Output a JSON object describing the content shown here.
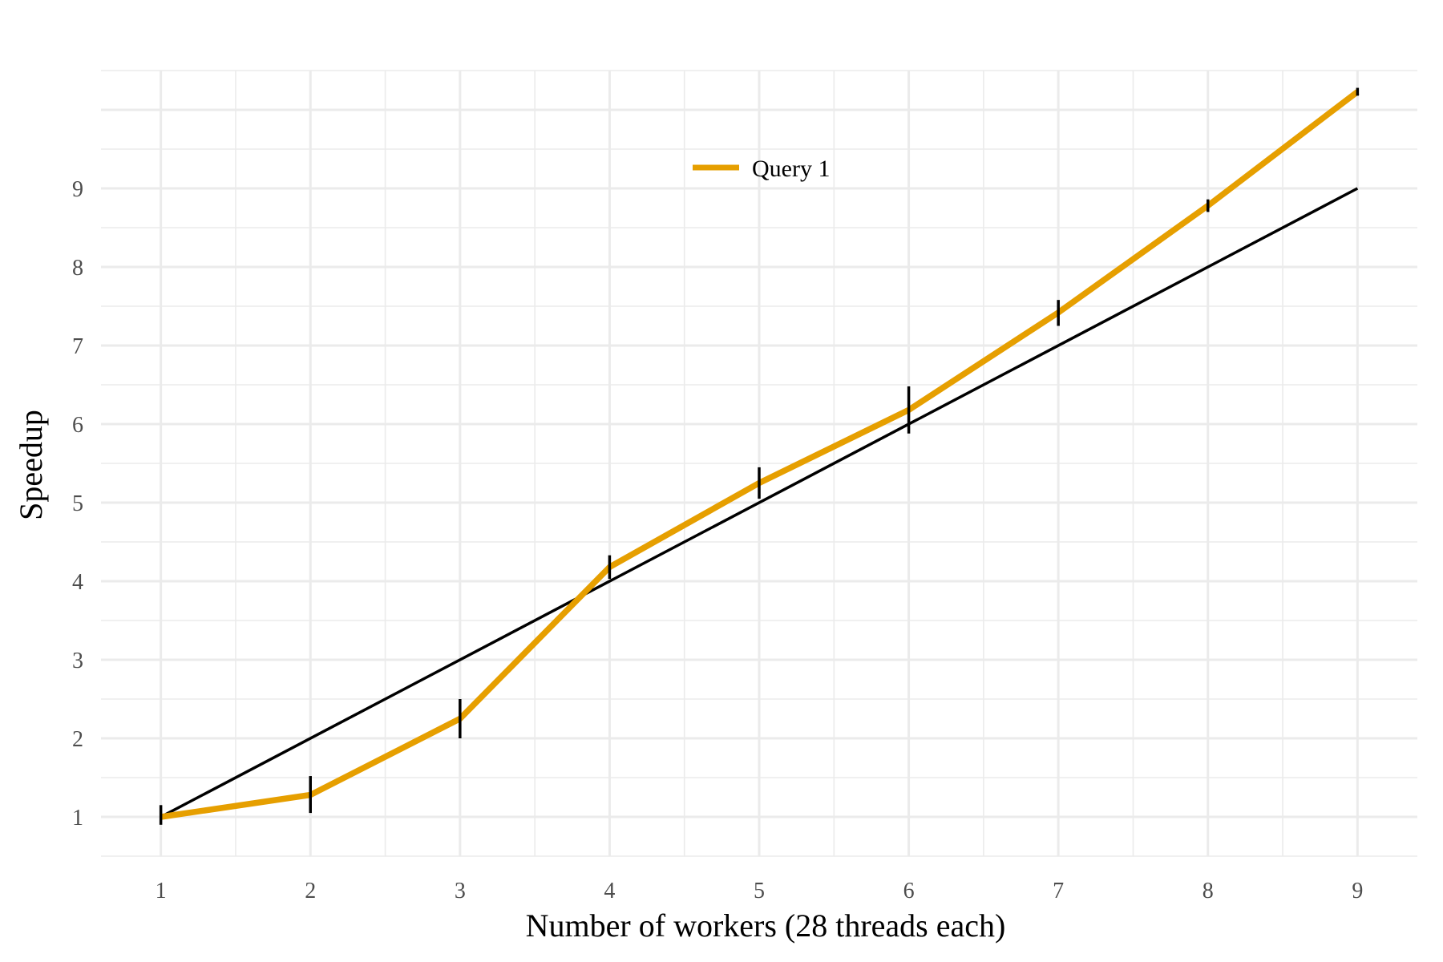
{
  "chart_data": {
    "type": "line",
    "xlabel": "Number of workers (28 threads each)",
    "ylabel": "Speedup",
    "x_ticks": [
      1,
      2,
      3,
      4,
      5,
      6,
      7,
      8,
      9
    ],
    "y_ticks": [
      1,
      2,
      3,
      4,
      5,
      6,
      7,
      8,
      9
    ],
    "xlim": [
      0.6,
      9.4
    ],
    "ylim": [
      0.5,
      10.5
    ],
    "grid": true,
    "legend_position": "top-center",
    "series": [
      {
        "name": "Query 1",
        "color": "#E69F00",
        "x": [
          1,
          2,
          3,
          4,
          5,
          6,
          7,
          8,
          9
        ],
        "y": [
          1.0,
          1.28,
          2.25,
          4.18,
          5.25,
          6.18,
          7.42,
          8.78,
          10.23
        ],
        "error_low": [
          0.9,
          1.05,
          2.0,
          4.03,
          5.05,
          5.88,
          7.25,
          8.7,
          10.18
        ],
        "error_high": [
          1.15,
          1.52,
          2.5,
          4.33,
          5.45,
          6.48,
          7.58,
          8.86,
          10.28
        ]
      },
      {
        "name": "",
        "role": "ideal-linear-reference",
        "color": "#000000",
        "x": [
          1,
          9
        ],
        "y": [
          1,
          9
        ]
      }
    ]
  }
}
